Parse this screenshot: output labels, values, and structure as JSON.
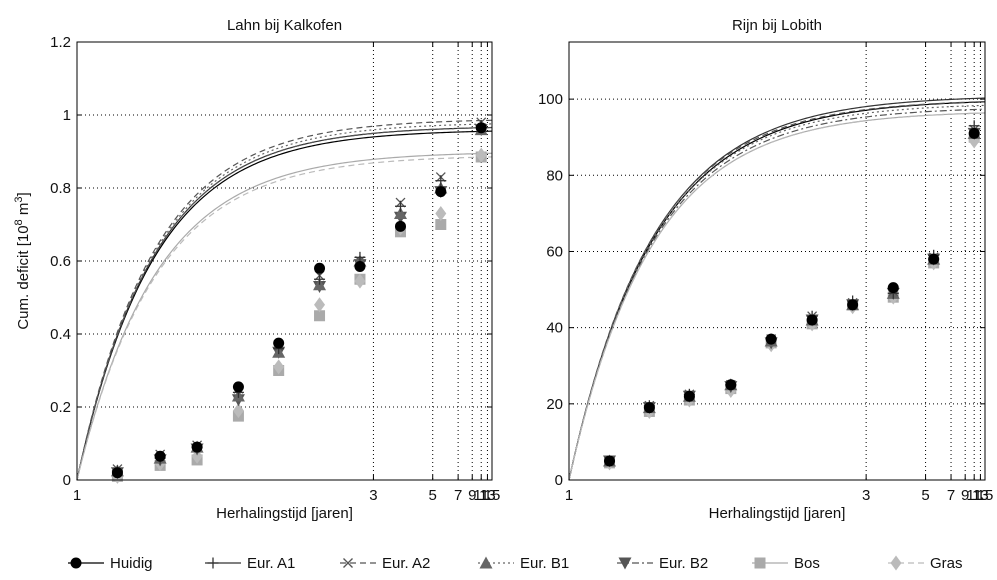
{
  "chart_data": [
    {
      "type": "scatter",
      "title": "Lahn bij Kalkofen",
      "xlabel": "Herhalingstijd [jaren]",
      "ylabel_main": "Cum. deficit [10",
      "ylabel_sup1": "8",
      "ylabel_mid": " m",
      "ylabel_sup2": "3",
      "ylabel_end": "]",
      "xscale": "reciprocal",
      "xlim": [
        1,
        15
      ],
      "ylim": [
        0,
        1.2
      ],
      "xticks": [
        1,
        3,
        5,
        7,
        9,
        11,
        13,
        15
      ],
      "xtick_labels": [
        "1",
        "3",
        "5",
        "7",
        "9",
        "11",
        "13",
        "15"
      ],
      "yticks": [
        0,
        0.2,
        0.4,
        0.6,
        0.8,
        1,
        1.2
      ],
      "ytick_labels": [
        "0",
        "0.2",
        "0.4",
        "0.6",
        "0.8",
        "1",
        "1.2"
      ],
      "grid": true,
      "x_points": [
        1.1,
        1.23,
        1.37,
        1.57,
        1.83,
        2.2,
        2.75,
        3.67,
        5.5,
        11
      ],
      "curves": [
        {
          "series": "Huidig",
          "params": [
            0.96,
            5.8
          ]
        },
        {
          "series": "Eur. A1",
          "params": [
            0.97,
            5.8
          ]
        },
        {
          "series": "Eur. A2",
          "params": [
            0.99,
            5.8
          ]
        },
        {
          "series": "Eur. B1",
          "params": [
            0.98,
            5.8
          ]
        },
        {
          "series": "Eur. B2",
          "params": [
            0.97,
            5.8
          ]
        },
        {
          "series": "Bos",
          "params": [
            0.9,
            5.6
          ]
        },
        {
          "series": "Gras",
          "params": [
            0.89,
            5.6
          ]
        }
      ],
      "points": {
        "Huidig": [
          0.02,
          0.065,
          0.09,
          0.255,
          0.375,
          0.58,
          0.585,
          0.695,
          0.79,
          0.965
        ],
        "Eur. A1": [
          0.025,
          0.06,
          0.09,
          0.24,
          0.36,
          0.55,
          0.61,
          0.75,
          0.82,
          0.97
        ],
        "Eur. A2": [
          0.03,
          0.07,
          0.095,
          0.25,
          0.37,
          0.56,
          0.6,
          0.76,
          0.83,
          0.98
        ],
        "Eur. B1": [
          0.025,
          0.06,
          0.09,
          0.23,
          0.35,
          0.535,
          0.6,
          0.73,
          0.8,
          0.96
        ],
        "Eur. B2": [
          0.02,
          0.055,
          0.085,
          0.22,
          0.35,
          0.53,
          0.59,
          0.72,
          0.79,
          0.96
        ],
        "Bos": [
          0.01,
          0.04,
          0.055,
          0.175,
          0.3,
          0.45,
          0.55,
          0.68,
          0.7,
          0.885
        ],
        "Gras": [
          0.01,
          0.045,
          0.065,
          0.19,
          0.31,
          0.48,
          0.545,
          0.69,
          0.73,
          0.89
        ]
      }
    },
    {
      "type": "scatter",
      "title": "Rijn bij Lobith",
      "xlabel": "Herhalingstijd [jaren]",
      "xscale": "reciprocal",
      "xlim": [
        1,
        15
      ],
      "ylim": [
        0,
        115
      ],
      "xticks": [
        1,
        3,
        5,
        7,
        9,
        11,
        13,
        15
      ],
      "xtick_labels": [
        "1",
        "3",
        "5",
        "7",
        "9",
        "11",
        "13",
        "15"
      ],
      "yticks": [
        0,
        20,
        40,
        60,
        80,
        100
      ],
      "ytick_labels": [
        "0",
        "20",
        "40",
        "60",
        "80",
        "100"
      ],
      "grid": true,
      "x_points": [
        1.1,
        1.22,
        1.37,
        1.57,
        1.83,
        2.2,
        2.75,
        3.67,
        5.5,
        11
      ],
      "curves": [
        {
          "series": "Huidig",
          "params": [
            100,
            5.3
          ]
        },
        {
          "series": "Eur. A1",
          "params": [
            101,
            5.3
          ]
        },
        {
          "series": "Eur. A2",
          "params": [
            100,
            5.4
          ]
        },
        {
          "series": "Eur. B1",
          "params": [
            99,
            5.4
          ]
        },
        {
          "series": "Eur. B2",
          "params": [
            98,
            5.4
          ]
        },
        {
          "series": "Bos",
          "params": [
            97,
            5.4
          ]
        },
        {
          "series": "Gras",
          "params": [
            97,
            5.4
          ]
        }
      ],
      "points": {
        "Huidig": [
          5,
          19,
          22,
          25,
          37,
          42,
          46,
          50.5,
          58,
          91
        ],
        "Eur. A1": [
          5,
          19.5,
          22.5,
          25,
          37,
          43,
          47,
          49,
          59,
          93
        ],
        "Eur. A2": [
          5,
          19.5,
          22.5,
          25,
          37,
          43,
          46.5,
          49.5,
          58.5,
          92
        ],
        "Eur. B1": [
          5,
          19,
          22,
          25,
          36.5,
          42,
          46,
          49,
          58,
          91
        ],
        "Eur. B2": [
          5,
          19,
          22,
          24.5,
          36,
          42,
          46,
          49,
          58,
          91
        ],
        "Bos": [
          4.5,
          18,
          21,
          24,
          36,
          41,
          46,
          48,
          57,
          90
        ],
        "Gras": [
          4.5,
          18,
          21,
          23.5,
          35.5,
          41,
          45.5,
          48,
          57,
          89
        ]
      }
    }
  ],
  "legend": {
    "placement": "bottom",
    "entries": [
      {
        "name": "Huidig",
        "marker": "circle",
        "line": "solid",
        "color": "#000000"
      },
      {
        "name": "Eur. A1",
        "marker": "plus",
        "line": "solid",
        "color": "#333333"
      },
      {
        "name": "Eur. A2",
        "marker": "cross",
        "line": "dashed",
        "color": "#555555"
      },
      {
        "name": "Eur. B1",
        "marker": "triangle-up",
        "line": "dotted",
        "color": "#666666"
      },
      {
        "name": "Eur. B2",
        "marker": "triangle-down",
        "line": "dashdot",
        "color": "#555555"
      },
      {
        "name": "Bos",
        "marker": "square",
        "line": "solid",
        "color": "#aaaaaa"
      },
      {
        "name": "Gras",
        "marker": "diamond",
        "line": "dashed",
        "color": "#bbbbbb"
      }
    ]
  }
}
